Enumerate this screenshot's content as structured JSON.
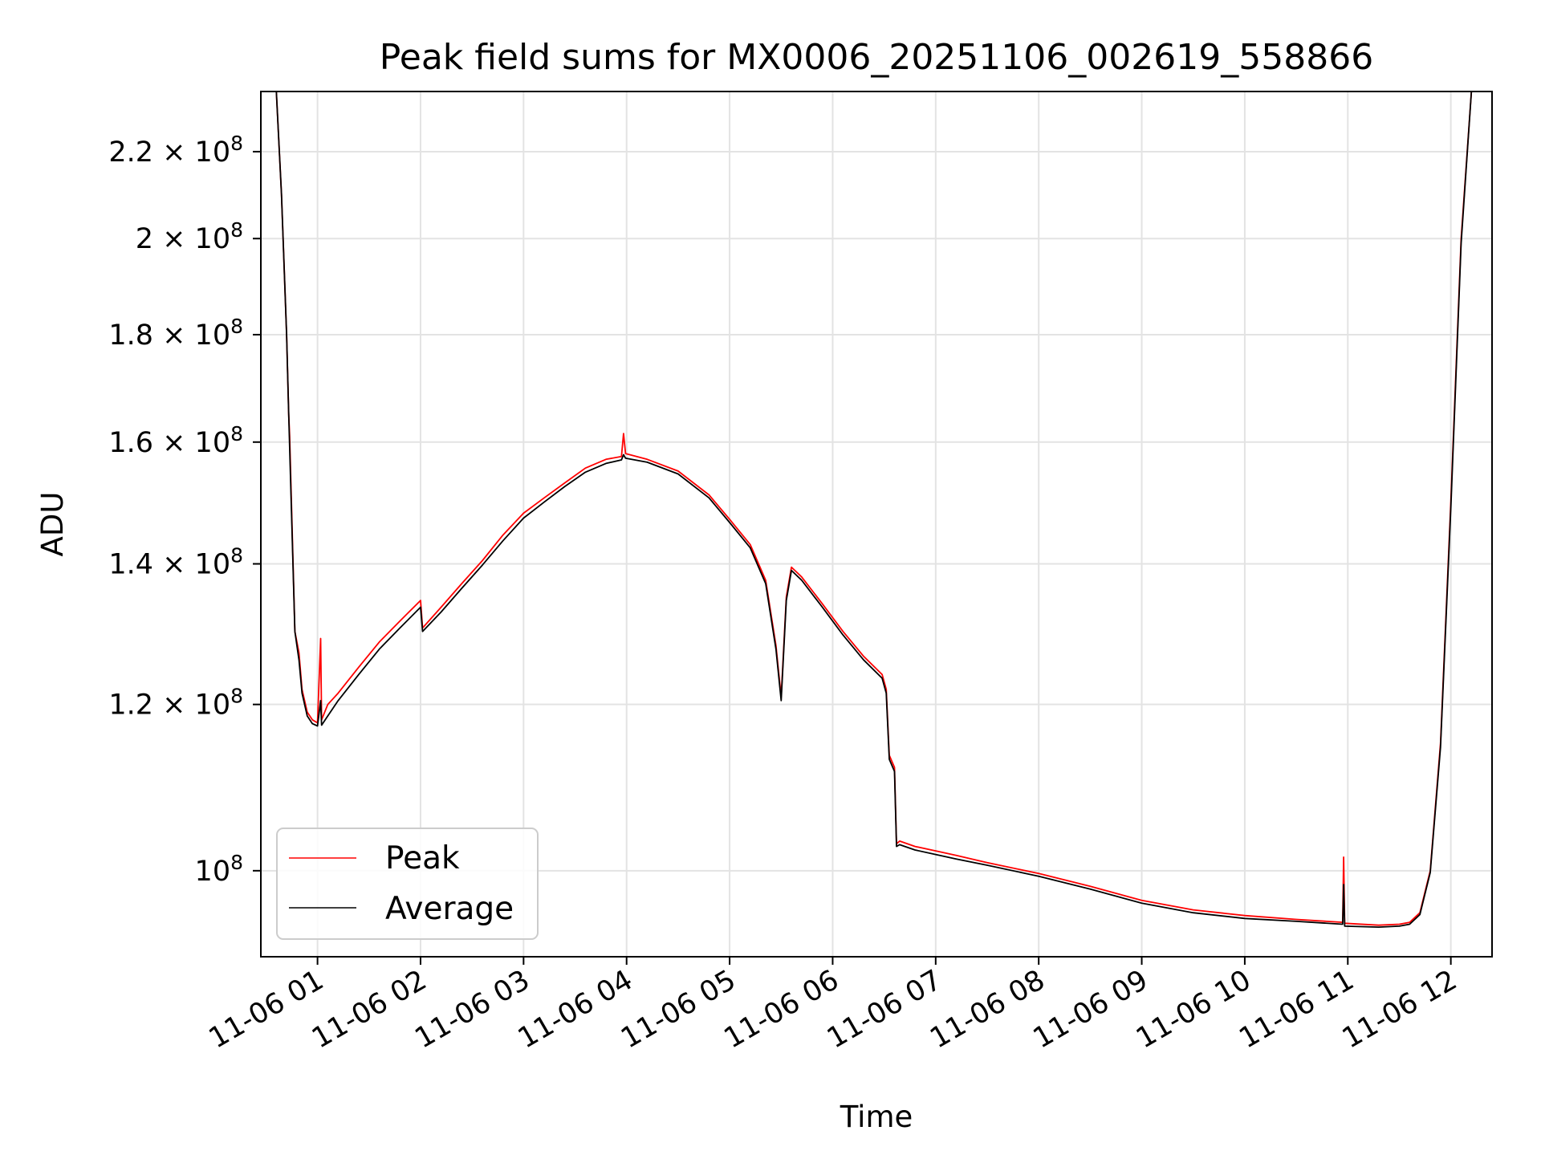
{
  "chart_data": {
    "type": "line",
    "title": "Peak field sums for MX0006_20251106_002619_558866",
    "xlabel": "Time",
    "ylabel": "ADU",
    "xscale": "time (hours since 11-06 00:00)",
    "yscale": "log",
    "xlim": [
      0.45,
      12.4
    ],
    "ylim": [
      91000000,
      235000000
    ],
    "grid": true,
    "legend_position": "lower-left",
    "x_ticks": [
      {
        "value": 1,
        "label": "11-06 01"
      },
      {
        "value": 2,
        "label": "11-06 02"
      },
      {
        "value": 3,
        "label": "11-06 03"
      },
      {
        "value": 4,
        "label": "11-06 04"
      },
      {
        "value": 5,
        "label": "11-06 05"
      },
      {
        "value": 6,
        "label": "11-06 06"
      },
      {
        "value": 7,
        "label": "11-06 07"
      },
      {
        "value": 8,
        "label": "11-06 08"
      },
      {
        "value": 9,
        "label": "11-06 09"
      },
      {
        "value": 10,
        "label": "11-06 10"
      },
      {
        "value": 11,
        "label": "11-06 11"
      },
      {
        "value": 12,
        "label": "11-06 12"
      }
    ],
    "y_ticks": [
      {
        "value": 100000000,
        "mantissa": "",
        "exponent": "8"
      },
      {
        "value": 120000000,
        "mantissa": "1.2",
        "exponent": "8"
      },
      {
        "value": 140000000,
        "mantissa": "1.4",
        "exponent": "8"
      },
      {
        "value": 160000000,
        "mantissa": "1.6",
        "exponent": "8"
      },
      {
        "value": 180000000,
        "mantissa": "1.8",
        "exponent": "8"
      },
      {
        "value": 200000000,
        "mantissa": "2",
        "exponent": "8"
      },
      {
        "value": 220000000,
        "mantissa": "2.2",
        "exponent": "8"
      }
    ],
    "series": [
      {
        "name": "Peak",
        "color": "#ff0000",
        "points": [
          [
            0.45,
            235000000
          ],
          [
            0.6,
            235000000
          ],
          [
            0.65,
            210000000
          ],
          [
            0.7,
            180000000
          ],
          [
            0.72,
            165000000
          ],
          [
            0.73,
            161000000
          ],
          [
            0.78,
            130000000
          ],
          [
            0.82,
            127000000
          ],
          [
            0.85,
            122000000
          ],
          [
            0.9,
            119000000
          ],
          [
            0.95,
            118000000
          ],
          [
            1.0,
            117600000
          ],
          [
            1.03,
            129000000
          ],
          [
            1.04,
            118000000
          ],
          [
            1.1,
            120000000
          ],
          [
            1.2,
            121500000
          ],
          [
            1.4,
            125000000
          ],
          [
            1.6,
            128500000
          ],
          [
            1.8,
            131500000
          ],
          [
            2.0,
            134500000
          ],
          [
            2.02,
            130500000
          ],
          [
            2.2,
            133500000
          ],
          [
            2.4,
            137000000
          ],
          [
            2.6,
            140500000
          ],
          [
            2.8,
            144500000
          ],
          [
            3.0,
            148000000
          ],
          [
            3.2,
            150500000
          ],
          [
            3.4,
            153000000
          ],
          [
            3.6,
            155500000
          ],
          [
            3.8,
            157000000
          ],
          [
            3.95,
            157500000
          ],
          [
            3.97,
            161500000
          ],
          [
            3.99,
            158000000
          ],
          [
            4.2,
            157000000
          ],
          [
            4.5,
            155000000
          ],
          [
            4.8,
            151000000
          ],
          [
            5.0,
            147000000
          ],
          [
            5.2,
            143000000
          ],
          [
            5.35,
            137500000
          ],
          [
            5.45,
            128000000
          ],
          [
            5.5,
            121000000
          ],
          [
            5.55,
            135000000
          ],
          [
            5.6,
            139500000
          ],
          [
            5.7,
            138000000
          ],
          [
            5.9,
            134000000
          ],
          [
            6.1,
            130000000
          ],
          [
            6.3,
            126500000
          ],
          [
            6.48,
            124000000
          ],
          [
            6.52,
            122000000
          ],
          [
            6.55,
            113500000
          ],
          [
            6.6,
            112000000
          ],
          [
            6.62,
            103000000
          ],
          [
            6.65,
            103300000
          ],
          [
            6.8,
            102700000
          ],
          [
            7.0,
            102200000
          ],
          [
            7.2,
            101700000
          ],
          [
            7.5,
            100900000
          ],
          [
            8.0,
            99700000
          ],
          [
            8.5,
            98300000
          ],
          [
            9.0,
            96800000
          ],
          [
            9.5,
            95800000
          ],
          [
            10.0,
            95200000
          ],
          [
            10.5,
            94800000
          ],
          [
            10.95,
            94500000
          ],
          [
            10.96,
            101500000
          ],
          [
            10.97,
            94400000
          ],
          [
            11.3,
            94200000
          ],
          [
            11.5,
            94300000
          ],
          [
            11.6,
            94500000
          ],
          [
            11.7,
            95500000
          ],
          [
            11.8,
            100000000
          ],
          [
            11.9,
            115000000
          ],
          [
            12.0,
            150000000
          ],
          [
            12.1,
            200000000
          ],
          [
            12.2,
            235000000
          ],
          [
            12.4,
            235000000
          ]
        ]
      },
      {
        "name": "Average",
        "color": "#000000",
        "points": [
          [
            0.45,
            235000000
          ],
          [
            0.6,
            235000000
          ],
          [
            0.65,
            210000000
          ],
          [
            0.7,
            180000000
          ],
          [
            0.72,
            165000000
          ],
          [
            0.73,
            159000000
          ],
          [
            0.78,
            130000000
          ],
          [
            0.82,
            126000000
          ],
          [
            0.85,
            121500000
          ],
          [
            0.9,
            118500000
          ],
          [
            0.95,
            117500000
          ],
          [
            1.0,
            117200000
          ],
          [
            1.03,
            120500000
          ],
          [
            1.04,
            117300000
          ],
          [
            1.1,
            118500000
          ],
          [
            1.2,
            120500000
          ],
          [
            1.4,
            124000000
          ],
          [
            1.6,
            127500000
          ],
          [
            1.8,
            130500000
          ],
          [
            2.0,
            133500000
          ],
          [
            2.02,
            130000000
          ],
          [
            2.2,
            132800000
          ],
          [
            2.4,
            136300000
          ],
          [
            2.6,
            139800000
          ],
          [
            2.8,
            143600000
          ],
          [
            3.0,
            147200000
          ],
          [
            3.2,
            149800000
          ],
          [
            3.4,
            152400000
          ],
          [
            3.6,
            154800000
          ],
          [
            3.8,
            156300000
          ],
          [
            3.95,
            156900000
          ],
          [
            3.97,
            157800000
          ],
          [
            3.99,
            157200000
          ],
          [
            4.2,
            156500000
          ],
          [
            4.5,
            154500000
          ],
          [
            4.8,
            150500000
          ],
          [
            5.0,
            146500000
          ],
          [
            5.2,
            142500000
          ],
          [
            5.35,
            137000000
          ],
          [
            5.45,
            127500000
          ],
          [
            5.5,
            120500000
          ],
          [
            5.55,
            134500000
          ],
          [
            5.6,
            139000000
          ],
          [
            5.7,
            137500000
          ],
          [
            5.9,
            133500000
          ],
          [
            6.1,
            129500000
          ],
          [
            6.3,
            126000000
          ],
          [
            6.48,
            123500000
          ],
          [
            6.52,
            121500000
          ],
          [
            6.55,
            113000000
          ],
          [
            6.6,
            111500000
          ],
          [
            6.62,
            102700000
          ],
          [
            6.65,
            102900000
          ],
          [
            6.8,
            102300000
          ],
          [
            7.0,
            101800000
          ],
          [
            7.2,
            101300000
          ],
          [
            7.5,
            100600000
          ],
          [
            8.0,
            99400000
          ],
          [
            8.5,
            98000000
          ],
          [
            9.0,
            96500000
          ],
          [
            9.5,
            95500000
          ],
          [
            10.0,
            94900000
          ],
          [
            10.5,
            94600000
          ],
          [
            10.95,
            94300000
          ],
          [
            10.96,
            98500000
          ],
          [
            10.97,
            94100000
          ],
          [
            11.3,
            94000000
          ],
          [
            11.5,
            94100000
          ],
          [
            11.6,
            94300000
          ],
          [
            11.7,
            95300000
          ],
          [
            11.8,
            99800000
          ],
          [
            11.9,
            114500000
          ],
          [
            12.0,
            149000000
          ],
          [
            12.1,
            199000000
          ],
          [
            12.2,
            235000000
          ],
          [
            12.4,
            235000000
          ]
        ]
      }
    ]
  },
  "legend": {
    "peak_label": "Peak",
    "average_label": "Average"
  },
  "tick_format": {
    "times_sign": "×",
    "base": "10"
  }
}
